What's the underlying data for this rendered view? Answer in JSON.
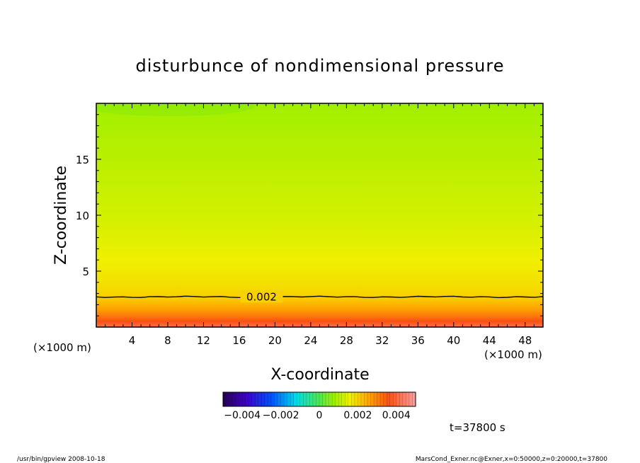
{
  "chart_data": {
    "type": "heatmap",
    "title": "disturbunce of nondimensional pressure",
    "xlabel": "X-coordinate",
    "ylabel": "Z-coordinate",
    "x_unit": "(×1000 m)",
    "y_unit": "(×1000 m)",
    "xlim": [
      0,
      50
    ],
    "ylim": [
      0,
      20
    ],
    "x_ticks": [
      "4",
      "8",
      "12",
      "16",
      "20",
      "24",
      "28",
      "32",
      "36",
      "40",
      "44",
      "48"
    ],
    "y_ticks": [
      "5",
      "10",
      "15"
    ],
    "contour_label": "0.002",
    "contour_level": 0.002,
    "contour_height": 2.7,
    "profile": {
      "z": [
        0,
        0.5,
        1,
        1.5,
        2,
        2.5,
        3,
        4,
        5,
        6,
        7,
        8,
        9,
        10,
        11,
        12,
        13,
        14,
        15,
        16,
        17,
        18,
        19,
        20
      ],
      "value": [
        0.0042,
        0.0036,
        0.0031,
        0.0027,
        0.0024,
        0.0021,
        0.00195,
        0.0018,
        0.0017,
        0.0016,
        0.0015,
        0.00142,
        0.00135,
        0.0013,
        0.00125,
        0.0012,
        0.00115,
        0.0011,
        0.00105,
        0.001,
        0.00095,
        0.0009,
        0.00085,
        0.0008
      ]
    },
    "colorbar": {
      "range": [
        -0.005,
        0.005
      ],
      "tick_labels": [
        "−0.004",
        "−0.002",
        "0",
        "0.002",
        "0.004"
      ],
      "tick_values": [
        -0.004,
        -0.002,
        0,
        0.002,
        0.004
      ]
    },
    "time_label": "t=37800 s",
    "grid": false
  },
  "footer": {
    "left": "/usr/bin/gpview   2008-10-18",
    "right": "MarsCond_Exner.nc@Exner,x=0:50000,z=0:20000,t=37800"
  }
}
